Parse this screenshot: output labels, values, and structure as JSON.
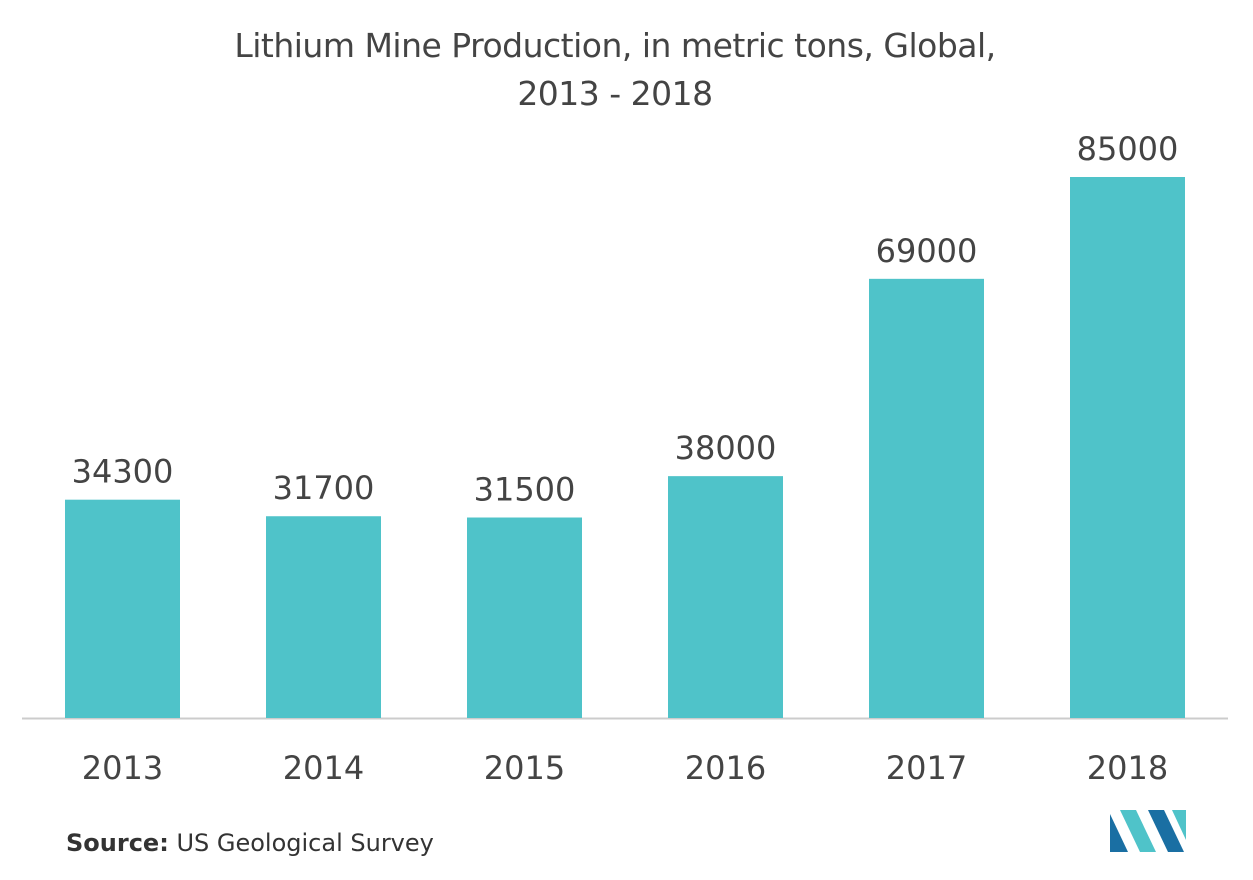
{
  "chart_data": {
    "type": "bar",
    "title_line1": "Lithium Mine Production, in metric tons, Global,",
    "title_line2": "2013 - 2018",
    "categories": [
      "2013",
      "2014",
      "2015",
      "2016",
      "2017",
      "2018"
    ],
    "values": [
      34300,
      31700,
      31500,
      38000,
      69000,
      85000
    ],
    "xlabel": "",
    "ylabel": "",
    "ylim": [
      0,
      85000
    ],
    "grid": false,
    "legend": "none",
    "bar_color": "#4fc3c9",
    "axis_color": "#cccccc",
    "label_color": "#444444"
  },
  "source": {
    "label": "Source:",
    "text": "US Geological Survey"
  },
  "logo": {
    "icon": "mordor-logo-icon",
    "color_dark": "#1a6fa3",
    "color_light": "#4fc3c9"
  }
}
